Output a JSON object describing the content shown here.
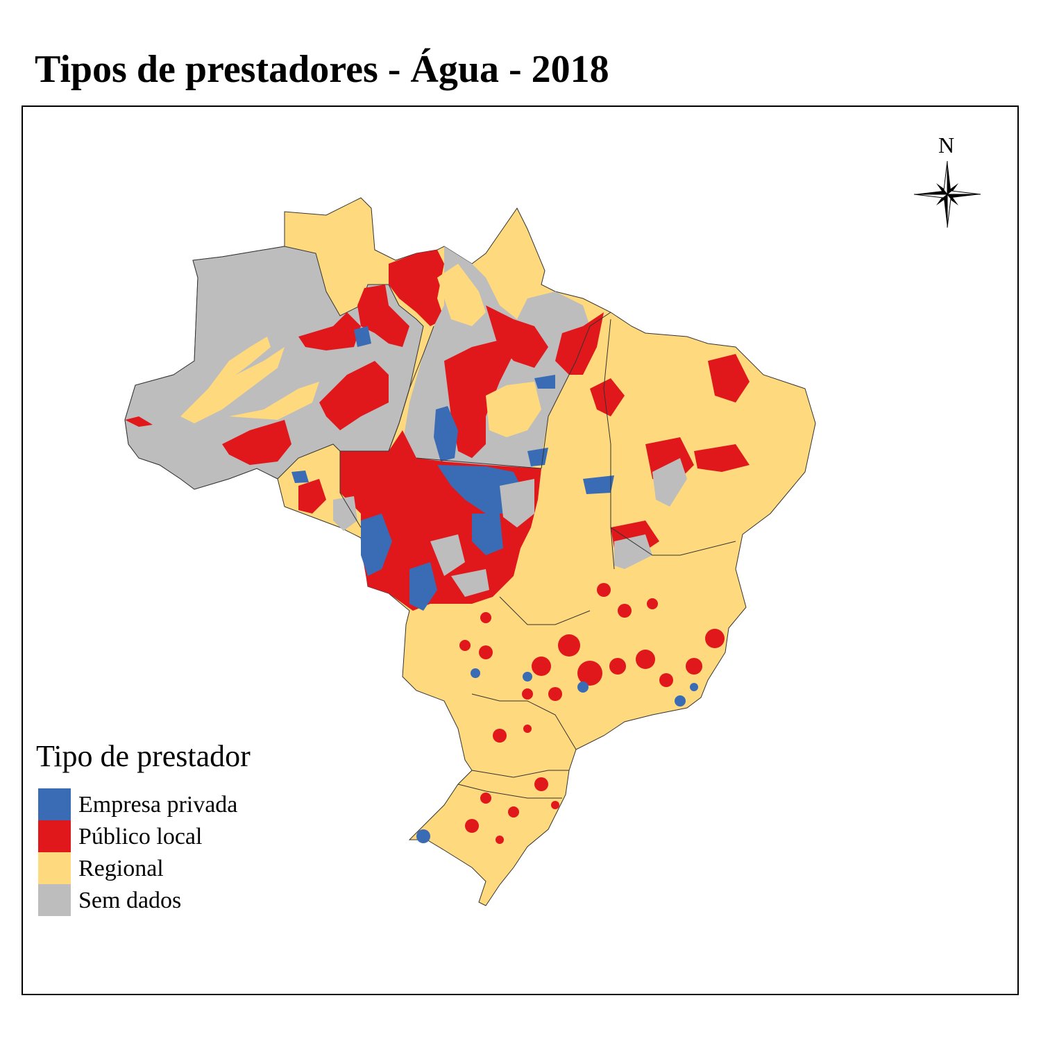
{
  "title": "Tipos de prestadores - Água - 2018",
  "north_arrow": {
    "label": "N"
  },
  "legend": {
    "title": "Tipo de prestador",
    "items": [
      {
        "label": "Empresa privada",
        "color": "#3a6bb5"
      },
      {
        "label": "Público local",
        "color": "#e0181c"
      },
      {
        "label": "Regional",
        "color": "#fed97e"
      },
      {
        "label": "Sem dados",
        "color": "#bdbdbd"
      }
    ]
  }
}
